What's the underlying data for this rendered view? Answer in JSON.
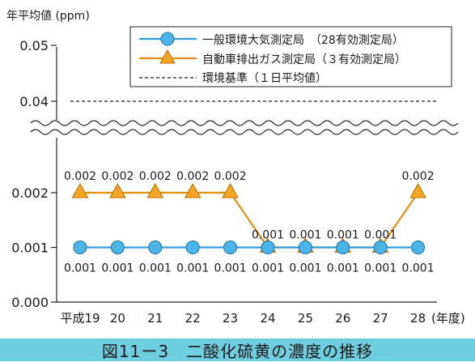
{
  "caption": "図11ー3　二酸化硫黄の濃度の推移",
  "colors": {
    "general": "#2f9fdc",
    "roadside": "#e39010",
    "marker_fill_general": "#4ab5e8",
    "marker_fill_roadside": "#f6a623",
    "caption_bg": "#6fcde0"
  },
  "chart_data": {
    "type": "line",
    "ylabel": "年平均値 (ppm)",
    "xlabel": "(年度)",
    "categories": [
      "平成19",
      "20",
      "21",
      "22",
      "23",
      "24",
      "25",
      "26",
      "27",
      "28"
    ],
    "y_ticks": [
      "0.000",
      "0.001",
      "0.002",
      "0.04",
      "0.05"
    ],
    "y_axis_broken": true,
    "series": [
      {
        "name": "一般環境大気測定局　（28有効測定局）",
        "marker": "circle",
        "values": [
          0.001,
          0.001,
          0.001,
          0.001,
          0.001,
          0.001,
          0.001,
          0.001,
          0.001,
          0.001
        ],
        "labels": [
          "0.001",
          "0.001",
          "0.001",
          "0.001",
          "0.001",
          "0.001",
          "0.001",
          "0.001",
          "0.001",
          "0.001"
        ]
      },
      {
        "name": "自動車排出ガス測定局（３有効測定局）",
        "marker": "triangle",
        "values": [
          0.002,
          0.002,
          0.002,
          0.002,
          0.002,
          0.001,
          0.001,
          0.001,
          0.001,
          0.002
        ],
        "labels": [
          "0.002",
          "0.002",
          "0.002",
          "0.002",
          "0.002",
          "0.001",
          "0.001",
          "0.001",
          "0.001",
          "0.002"
        ]
      }
    ],
    "reference_line": {
      "name": "環境基準（１日平均値）",
      "value": 0.04,
      "style": "dashed"
    },
    "legend_position": "top-right"
  }
}
